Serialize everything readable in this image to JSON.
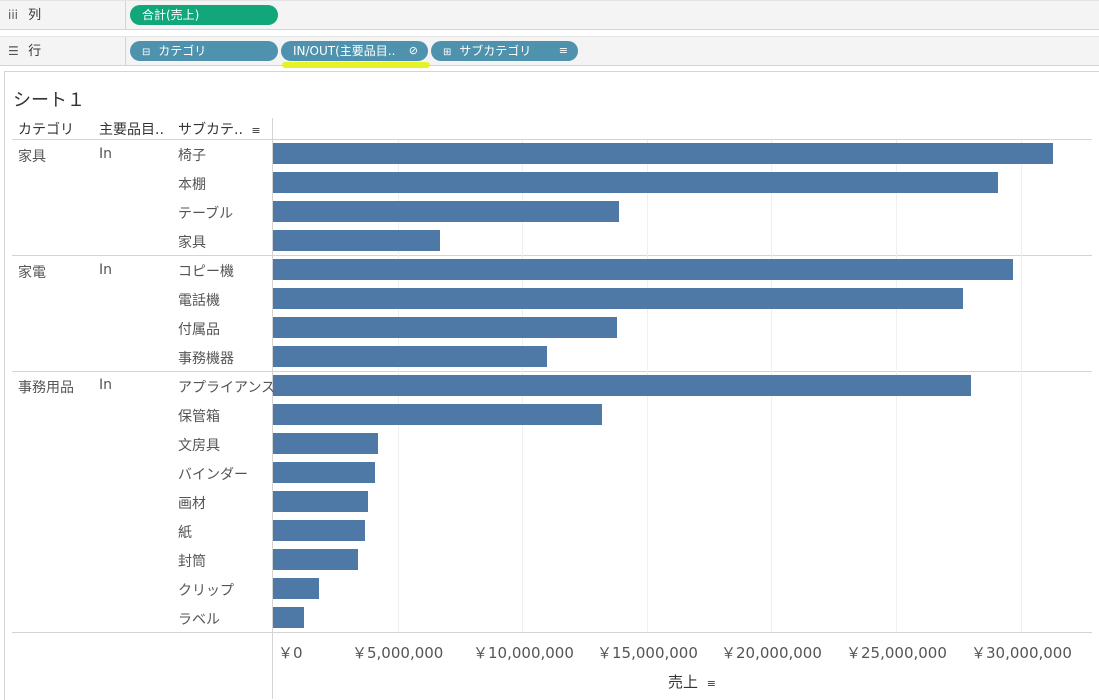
{
  "shelves": {
    "columns": {
      "label": "列",
      "icon": "iii",
      "pills": [
        {
          "label": "合計(売上)"
        }
      ]
    },
    "rows": {
      "label": "行",
      "icon": "☰",
      "pills": [
        {
          "label": "カテゴリ",
          "icon": "⊟"
        },
        {
          "label": "IN/OUT(主要品目..",
          "icon": "⊘"
        },
        {
          "label": "サブカテゴリ",
          "icon": "⊞",
          "sort_icon": "≡"
        }
      ]
    }
  },
  "sheet": {
    "title": "シート１",
    "headers": {
      "category": "カテゴリ",
      "main_item": "主要品目..",
      "subcategory": "サブカテ..",
      "sort_icon": "≡"
    },
    "axis": {
      "title": "売上",
      "sort_icon": "≡",
      "ticks": [
        "￥0",
        "￥5,000,000",
        "￥10,000,000",
        "￥15,000,000",
        "￥20,000,000",
        "￥25,000,000",
        "￥30,000,000"
      ]
    }
  },
  "groups": [
    {
      "category": "家具",
      "inout": "In"
    },
    {
      "category": "家電",
      "inout": "In"
    },
    {
      "category": "事務用品",
      "inout": "In"
    }
  ],
  "chart_data": {
    "type": "bar",
    "orientation": "horizontal",
    "xlabel": "売上",
    "xlim": [
      0,
      32000000
    ],
    "grid": true,
    "bar_color": "#4e79a7",
    "rows": [
      {
        "category": "家具",
        "inout": "In",
        "subcategory": "椅子",
        "value": 31300000
      },
      {
        "category": "家具",
        "inout": "In",
        "subcategory": "本棚",
        "value": 29100000
      },
      {
        "category": "家具",
        "inout": "In",
        "subcategory": "テーブル",
        "value": 13900000
      },
      {
        "category": "家具",
        "inout": "In",
        "subcategory": "家具",
        "value": 6700000
      },
      {
        "category": "家電",
        "inout": "In",
        "subcategory": "コピー機",
        "value": 29700000
      },
      {
        "category": "家電",
        "inout": "In",
        "subcategory": "電話機",
        "value": 27700000
      },
      {
        "category": "家電",
        "inout": "In",
        "subcategory": "付属品",
        "value": 13800000
      },
      {
        "category": "家電",
        "inout": "In",
        "subcategory": "事務機器",
        "value": 11000000
      },
      {
        "category": "事務用品",
        "inout": "In",
        "subcategory": "アプライアンス",
        "value": 28000000
      },
      {
        "category": "事務用品",
        "inout": "In",
        "subcategory": "保管箱",
        "value": 13200000
      },
      {
        "category": "事務用品",
        "inout": "In",
        "subcategory": "文房具",
        "value": 4200000
      },
      {
        "category": "事務用品",
        "inout": "In",
        "subcategory": "バインダー",
        "value": 4100000
      },
      {
        "category": "事務用品",
        "inout": "In",
        "subcategory": "画材",
        "value": 3800000
      },
      {
        "category": "事務用品",
        "inout": "In",
        "subcategory": "紙",
        "value": 3700000
      },
      {
        "category": "事務用品",
        "inout": "In",
        "subcategory": "封筒",
        "value": 3400000
      },
      {
        "category": "事務用品",
        "inout": "In",
        "subcategory": "クリップ",
        "value": 1850000
      },
      {
        "category": "事務用品",
        "inout": "In",
        "subcategory": "ラベル",
        "value": 1250000
      }
    ]
  }
}
